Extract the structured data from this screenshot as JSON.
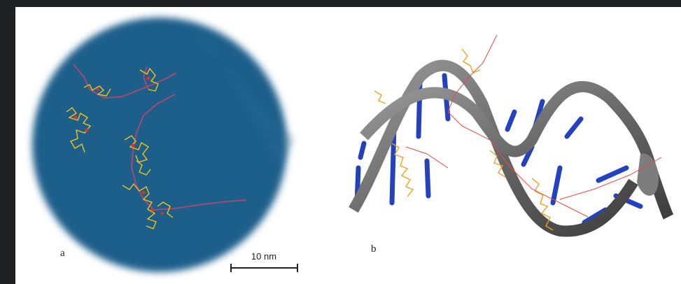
{
  "figure": {
    "panels": [
      {
        "label": "a"
      },
      {
        "label": "b"
      }
    ],
    "scale_bar": "10 nm"
  }
}
